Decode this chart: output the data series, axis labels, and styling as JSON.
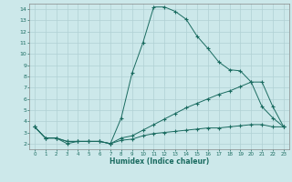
{
  "xlabel": "Humidex (Indice chaleur)",
  "background_color": "#cce8ea",
  "grid_color": "#b0d0d4",
  "line_color": "#1a6b60",
  "xlim": [
    -0.5,
    23.5
  ],
  "ylim": [
    1.5,
    14.5
  ],
  "yticks": [
    2,
    3,
    4,
    5,
    6,
    7,
    8,
    9,
    10,
    11,
    12,
    13,
    14
  ],
  "xticks": [
    0,
    1,
    2,
    3,
    4,
    5,
    6,
    7,
    8,
    9,
    10,
    11,
    12,
    13,
    14,
    15,
    16,
    17,
    18,
    19,
    20,
    21,
    22,
    23
  ],
  "line1_x": [
    0,
    1,
    2,
    3,
    4,
    5,
    6,
    7,
    8,
    9,
    10,
    11,
    12,
    13,
    14,
    15,
    16,
    17,
    18,
    19,
    20,
    21,
    22,
    23
  ],
  "line1_y": [
    3.5,
    2.5,
    2.5,
    2.0,
    2.2,
    2.2,
    2.2,
    2.0,
    2.3,
    2.4,
    2.7,
    2.9,
    3.0,
    3.1,
    3.2,
    3.3,
    3.4,
    3.4,
    3.5,
    3.6,
    3.7,
    3.7,
    3.5,
    3.5
  ],
  "line2_x": [
    0,
    1,
    2,
    3,
    4,
    5,
    6,
    7,
    8,
    9,
    10,
    11,
    12,
    13,
    14,
    15,
    16,
    17,
    18,
    19,
    20,
    21,
    22,
    23
  ],
  "line2_y": [
    3.5,
    2.5,
    2.5,
    2.2,
    2.2,
    2.2,
    2.2,
    2.0,
    4.3,
    8.3,
    11.0,
    14.2,
    14.2,
    13.8,
    13.1,
    11.6,
    10.5,
    9.3,
    8.6,
    8.5,
    7.5,
    5.3,
    4.3,
    3.5
  ],
  "line3_x": [
    0,
    1,
    2,
    3,
    4,
    5,
    6,
    7,
    8,
    9,
    10,
    11,
    12,
    13,
    14,
    15,
    16,
    17,
    18,
    19,
    20,
    21,
    22,
    23
  ],
  "line3_y": [
    3.5,
    2.5,
    2.5,
    2.2,
    2.2,
    2.2,
    2.2,
    2.0,
    2.5,
    2.7,
    3.2,
    3.7,
    4.2,
    4.7,
    5.2,
    5.6,
    6.0,
    6.4,
    6.7,
    7.1,
    7.5,
    7.5,
    5.3,
    3.5
  ]
}
